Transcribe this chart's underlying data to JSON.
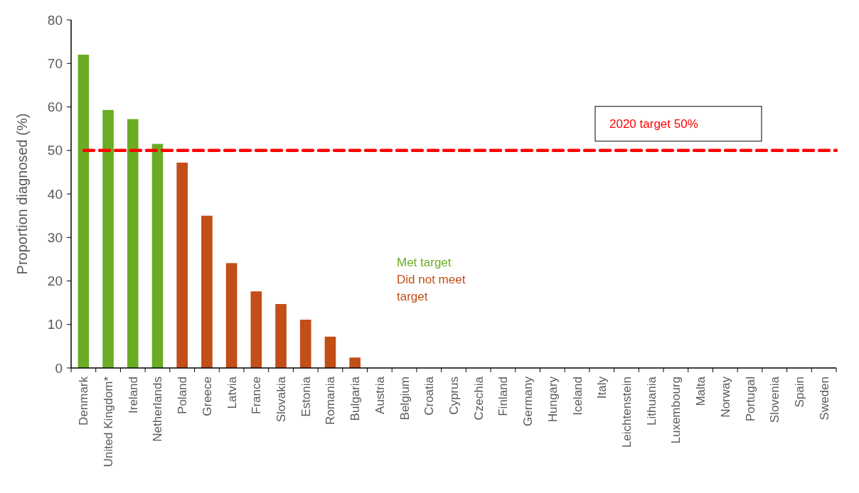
{
  "chart_data": {
    "type": "bar",
    "ylabel": "Proportion diagnosed (%)",
    "categories": [
      "Denmark",
      "United Kingdom*",
      "Ireland",
      "Netherlands",
      "Poland",
      "Greece",
      "Latvia",
      "France",
      "Slovakia",
      "Estonia",
      "Romania",
      "Bulgaria",
      "Austria",
      "Belgium",
      "Croatia",
      "Cyprus",
      "Czechia",
      "Finland",
      "Germany",
      "Hungary",
      "Iceland",
      "Italy",
      "Leichtenstein",
      "Lithuania",
      "Luxembourg",
      "Malta",
      "Norway",
      "Portugal",
      "Slovenia",
      "Spain",
      "Sweden"
    ],
    "series": [
      {
        "name": "Met target",
        "color": "#6aad24",
        "values": [
          72,
          59.3,
          57.2,
          51.5,
          null,
          null,
          null,
          null,
          null,
          null,
          null,
          null,
          null,
          null,
          null,
          null,
          null,
          null,
          null,
          null,
          null,
          null,
          null,
          null,
          null,
          null,
          null,
          null,
          null,
          null,
          null
        ]
      },
      {
        "name": "Did not meet\ntarget",
        "color": "#c24e18",
        "values": [
          null,
          null,
          null,
          null,
          47.2,
          35,
          24.1,
          17.6,
          14.7,
          11.1,
          7.2,
          2.4,
          0,
          0,
          0,
          0,
          0,
          0,
          0,
          0,
          0,
          0,
          0,
          0,
          0,
          0,
          0,
          0,
          0,
          0,
          0
        ]
      }
    ],
    "ylim": [
      0,
      80
    ],
    "yticks": [
      0,
      10,
      20,
      30,
      40,
      50,
      60,
      70,
      80
    ],
    "ref_lines": [
      {
        "axis": "y",
        "value": 50,
        "label": "2020 target 50%",
        "color": "#ff0000",
        "line_style": "dashed"
      }
    ],
    "legend": "center"
  }
}
